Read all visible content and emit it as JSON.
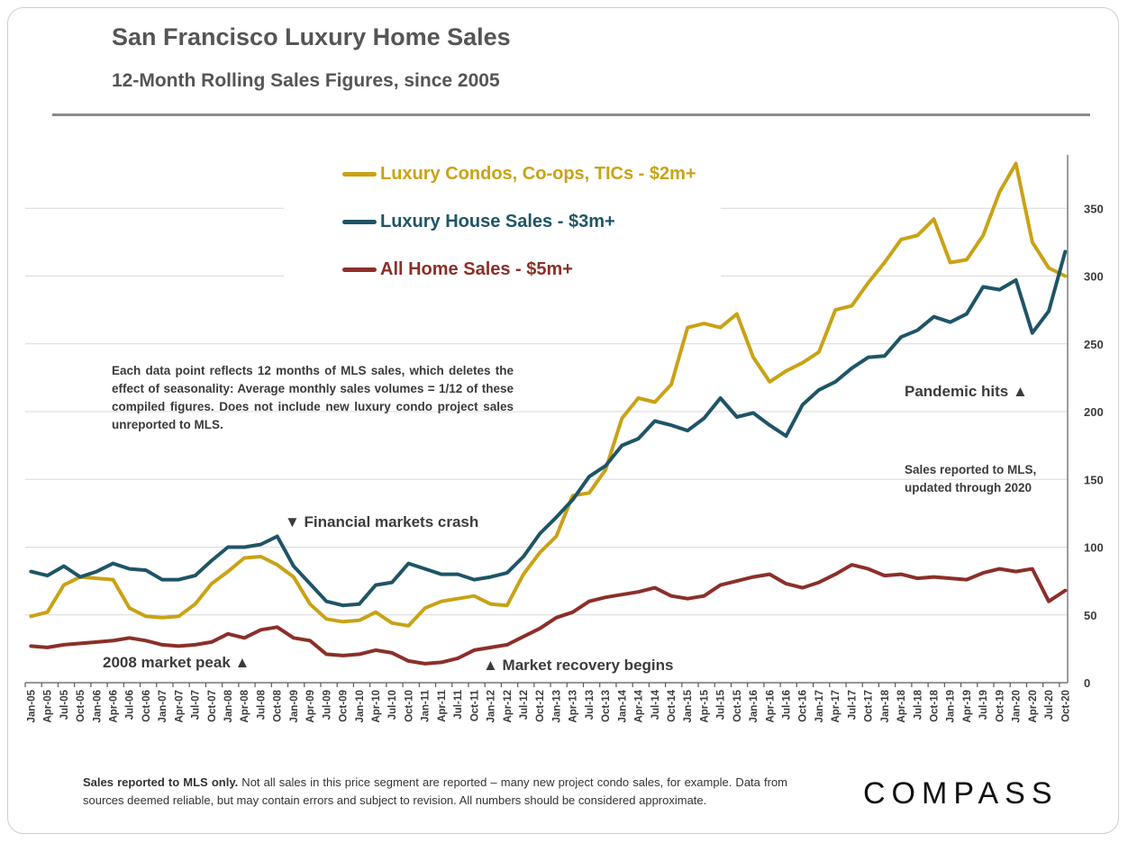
{
  "colors": {
    "condo": "#c9a215",
    "house": "#1e5566",
    "all": "#8b2f2a",
    "grid": "#d9d9d9",
    "axis": "#595959"
  },
  "header": {
    "title": "San Francisco Luxury Home Sales",
    "subtitle": "12-Month Rolling Sales Figures, since 2005"
  },
  "note": "Each data point reflects 12 months of MLS sales, which deletes the effect of seasonality:  Average monthly sales volumes = 1/12 of these compiled figures. Does not include new luxury condo project sales unreported to MLS.",
  "annotations": {
    "crash": "▼ Financial markets crash",
    "peak": "2008 market peak ▲",
    "recovery": "▲ Market recovery begins",
    "pandemic": "Pandemic hits ▲",
    "updated_line1": "Sales reported to MLS,",
    "updated_line2": "updated through 2020"
  },
  "footer": {
    "bold": "Sales reported to MLS only.",
    "text": " Not all sales in this price segment are reported – many new project condo sales, for example. Data from sources deemed reliable, but may contain errors and subject to revision. All numbers should be considered approximate."
  },
  "logo": "COMPASS",
  "chart_data": {
    "type": "line",
    "title": "San Francisco Luxury Home Sales",
    "subtitle": "12-Month Rolling Sales Figures, since 2005",
    "xlabel": "",
    "ylabel": "",
    "ylim": [
      0,
      390
    ],
    "yticks": [
      0,
      50,
      100,
      150,
      200,
      250,
      300,
      350
    ],
    "grid": true,
    "legend_position": "top-center",
    "x_tick_labels": [
      "Jan-05",
      "Apr-05",
      "Jul-05",
      "Oct-05",
      "Jan-06",
      "Apr-06",
      "Jul-06",
      "Oct-06",
      "Jan-07",
      "Apr-07",
      "Jul-07",
      "Oct-07",
      "Jan-08",
      "Apr-08",
      "Jul-08",
      "Oct-08",
      "Jan-09",
      "Apr-09",
      "Jul-09",
      "Oct-09",
      "Jan-10",
      "Apr-10",
      "Jul-10",
      "Oct-10",
      "Jan-11",
      "Apr-11",
      "Jul-11",
      "Oct-11",
      "Jan-12",
      "Apr-12",
      "Jul-12",
      "Oct-12",
      "Jan-13",
      "Apr-13",
      "Jul-13",
      "Oct-13",
      "Jan-14",
      "Apr-14",
      "Jul-14",
      "Oct-14",
      "Jan-15",
      "Apr-15",
      "Jul-15",
      "Oct-15",
      "Jan-16",
      "Apr-16",
      "Jul-16",
      "Oct-16",
      "Jan-17",
      "Apr-17",
      "Jul-17",
      "Oct-17",
      "Jan-18",
      "Apr-18",
      "Jul-18",
      "Oct-18",
      "Jan-19",
      "Apr-19",
      "Jul-19",
      "Oct-19",
      "Jan-20",
      "Apr-20",
      "Jul-20",
      "Oct-20"
    ],
    "x_start": "Jan-05",
    "x_step": "quarter",
    "series": [
      {
        "name": "Luxury Condos, Co-ops, TICs - $2m+",
        "color": "#c9a215",
        "values": [
          49,
          52,
          72,
          78,
          77,
          76,
          55,
          49,
          48,
          49,
          58,
          73,
          82,
          92,
          93,
          87,
          78,
          58,
          47,
          45,
          46,
          52,
          44,
          42,
          55,
          60,
          62,
          64,
          58,
          57,
          80,
          96,
          108,
          138,
          140,
          157,
          195,
          210,
          207,
          220,
          262,
          265,
          262,
          272,
          240,
          222,
          230,
          236,
          244,
          275,
          278,
          295,
          310,
          327,
          330,
          342,
          310,
          312,
          330,
          362,
          383,
          325,
          306,
          300
        ]
      },
      {
        "name": "Luxury House Sales - $3m+",
        "color": "#1e5566",
        "values": [
          82,
          79,
          86,
          78,
          82,
          88,
          84,
          83,
          76,
          76,
          79,
          90,
          100,
          100,
          102,
          108,
          86,
          73,
          60,
          57,
          58,
          72,
          74,
          88,
          84,
          80,
          80,
          76,
          78,
          81,
          93,
          110,
          122,
          135,
          152,
          160,
          175,
          180,
          193,
          190,
          186,
          195,
          210,
          196,
          199,
          190,
          182,
          205,
          216,
          222,
          232,
          240,
          241,
          255,
          260,
          270,
          266,
          272,
          292,
          290,
          297,
          258,
          274,
          318
        ]
      },
      {
        "name": "All Home Sales - $5m+",
        "color": "#8b2f2a",
        "values": [
          27,
          26,
          28,
          29,
          30,
          31,
          33,
          31,
          28,
          27,
          28,
          30,
          36,
          33,
          39,
          41,
          33,
          31,
          21,
          20,
          21,
          24,
          22,
          16,
          14,
          15,
          18,
          24,
          26,
          28,
          34,
          40,
          48,
          52,
          60,
          63,
          65,
          67,
          70,
          64,
          62,
          64,
          72,
          75,
          78,
          80,
          73,
          70,
          74,
          80,
          87,
          84,
          79,
          80,
          77,
          78,
          77,
          76,
          81,
          84,
          82,
          84,
          60,
          68
        ]
      }
    ]
  }
}
